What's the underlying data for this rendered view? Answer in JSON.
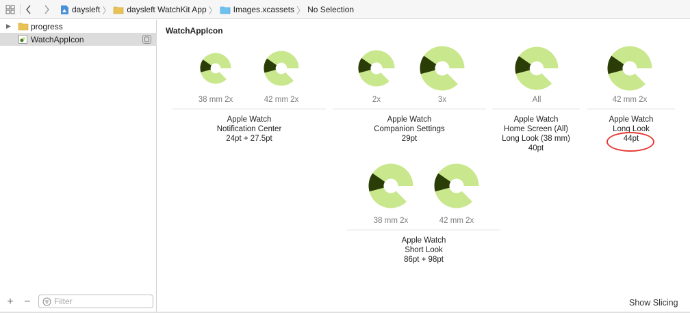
{
  "jumpbar": {
    "crumbs": [
      "daysleft",
      "daysleft WatchKit App",
      "Images.xcassets",
      "No Selection"
    ]
  },
  "sidebar": {
    "items": [
      {
        "label": "progress"
      },
      {
        "label": "WatchAppIcon"
      }
    ],
    "filter_placeholder": "Filter"
  },
  "main": {
    "title": "WatchAppIcon",
    "slots": [
      {
        "label": "38 mm 2x",
        "ratio": 0.25,
        "icon": "app-icon"
      },
      {
        "label": "42 mm 2x",
        "ratio": 0.25,
        "icon": "app-icon"
      },
      {
        "label": "2x",
        "ratio": 0.25,
        "icon": "app-icon"
      },
      {
        "label": "3x",
        "ratio": 0.25,
        "icon": "app-icon"
      },
      {
        "label": "All",
        "ratio": 0.25,
        "icon": "app-icon"
      },
      {
        "label": "42 mm 2x",
        "ratio": 0.25,
        "icon": "app-icon"
      },
      {
        "label": "38 mm 2x",
        "ratio": 0.25,
        "icon": "app-icon"
      },
      {
        "label": "42 mm 2x",
        "ratio": 0.25,
        "icon": "app-icon"
      }
    ],
    "groups": [
      {
        "lines": [
          "Apple Watch",
          "Notification Center",
          "24pt + 27.5pt"
        ]
      },
      {
        "lines": [
          "Apple Watch",
          "Companion Settings",
          "29pt"
        ]
      },
      {
        "lines": [
          "Apple Watch",
          "Home Screen (All)",
          "Long Look (38 mm)",
          "40pt"
        ]
      },
      {
        "lines": [
          "Apple Watch",
          "Long Look",
          "44pt"
        ]
      },
      {
        "lines": [
          "Apple Watch",
          "Short Look",
          "86pt + 98pt"
        ]
      }
    ],
    "show_slicing": "Show Slicing"
  },
  "colors": {
    "ring_light": "#c9e78c",
    "ring_dark": "#2a3d06",
    "highlight": "#e53b34"
  }
}
